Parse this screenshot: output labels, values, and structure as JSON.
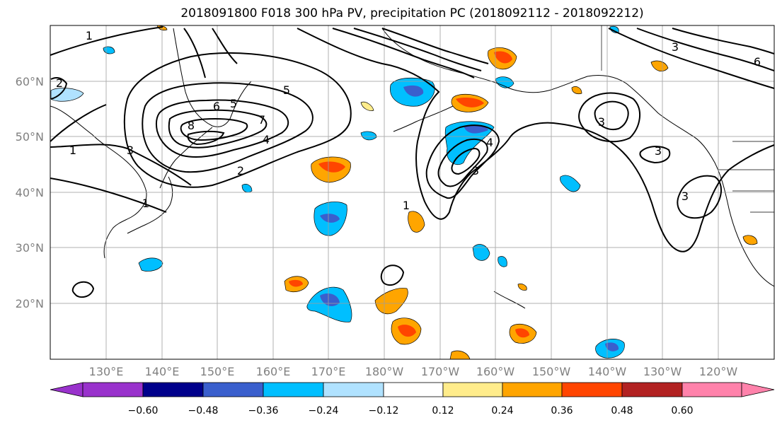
{
  "title": "2018091800 F018 300 hPa PV, precipitation PC (2018092112 - 2018092212)",
  "lat_labels": [
    "60°N",
    "50°N",
    "40°N",
    "30°N",
    "20°N"
  ],
  "lon_labels": [
    "130°E",
    "140°E",
    "150°E",
    "160°E",
    "170°E",
    "180°W",
    "170°W",
    "160°W",
    "150°W",
    "140°W",
    "130°W",
    "120°W"
  ],
  "colorbar": {
    "ticks": [
      "−0.60",
      "−0.48",
      "−0.36",
      "−0.24",
      "−0.12",
      "0.12",
      "0.24",
      "0.36",
      "0.48",
      "0.60"
    ],
    "colors": [
      "#9932CC",
      "#00008B",
      "#3A5FCD",
      "#00BFFF",
      "#B0E2FF",
      "#FFFFFF",
      "#FFEC8B",
      "#FFA500",
      "#FF4500",
      "#B22222",
      "#FF82AB"
    ]
  },
  "contour_labels": [
    "1",
    "1",
    "1",
    "1",
    "2",
    "2",
    "3",
    "3",
    "3",
    "3",
    "3",
    "4",
    "4",
    "5",
    "5",
    "6",
    "6",
    "7",
    "8",
    "3"
  ]
}
